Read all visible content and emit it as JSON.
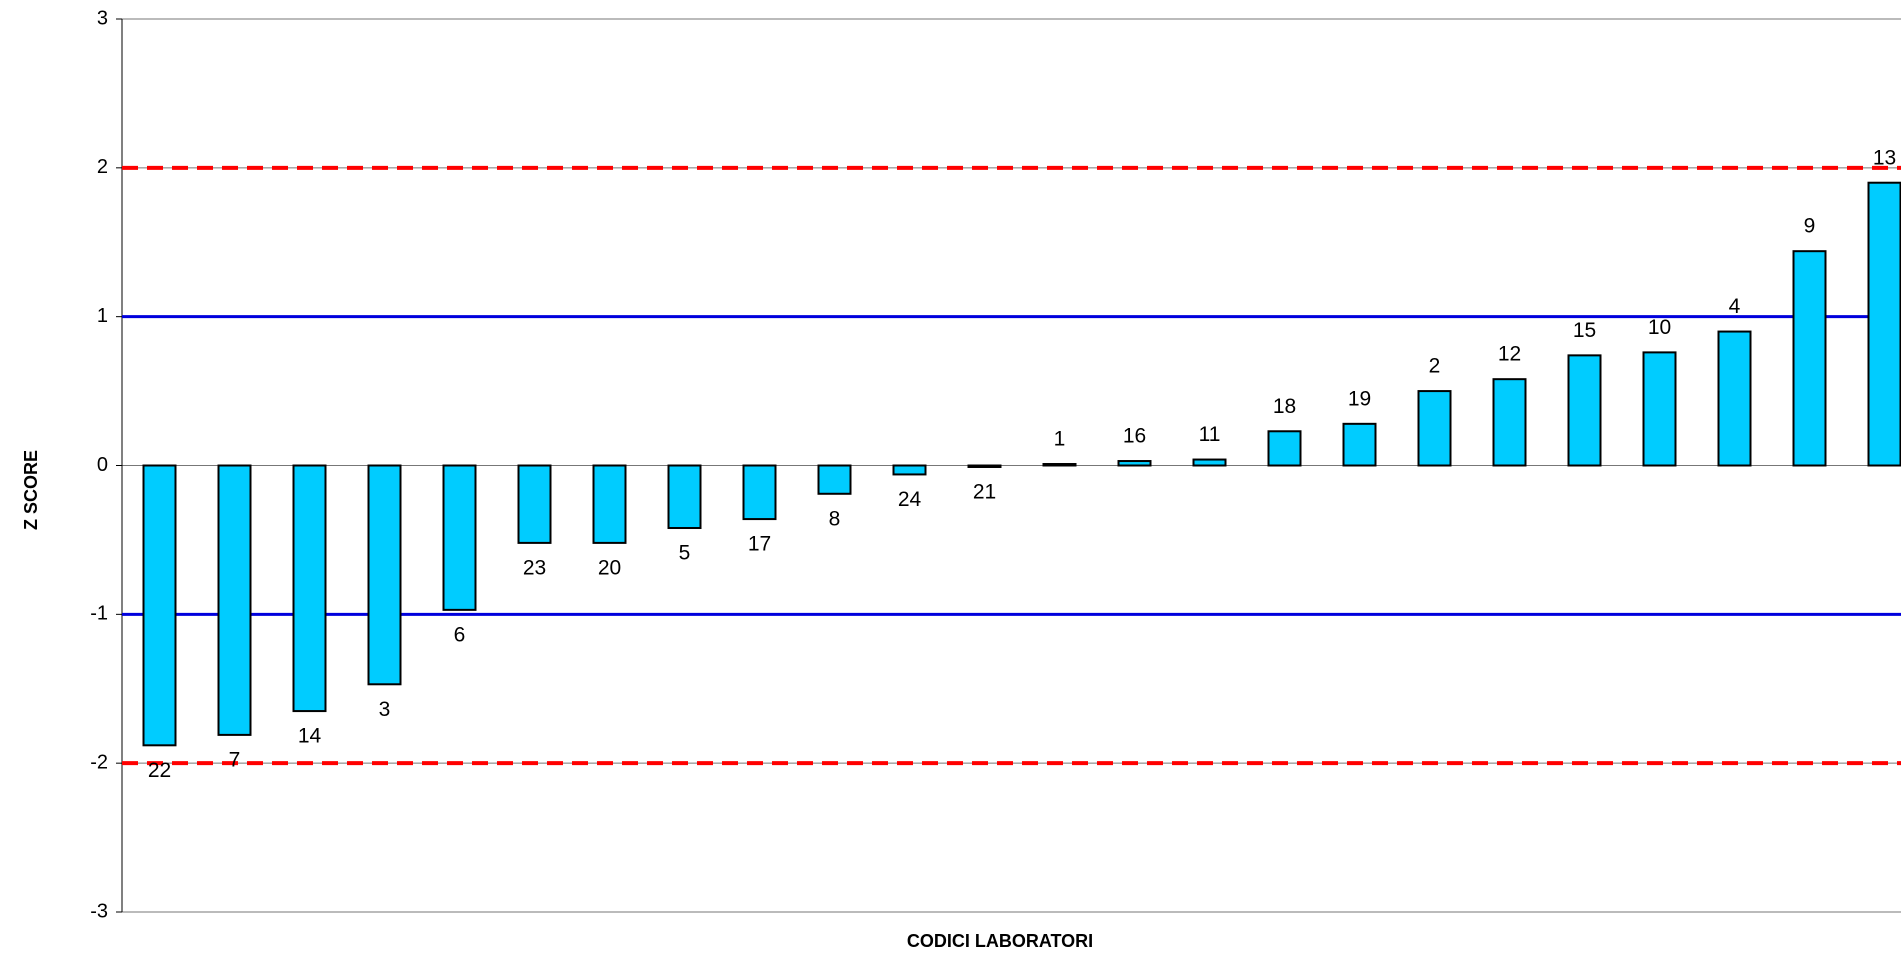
{
  "chart_data": {
    "type": "bar",
    "x_label": "CODICI LABORATORI",
    "y_label": "Z SCORE",
    "categories": [
      "22",
      "7",
      "14",
      "3",
      "6",
      "23",
      "20",
      "5",
      "17",
      "8",
      "24",
      "21",
      "1",
      "16",
      "11",
      "18",
      "19",
      "2",
      "12",
      "15",
      "10",
      "4",
      "9",
      "13"
    ],
    "values": [
      -1.88,
      -1.81,
      -1.65,
      -1.47,
      -0.97,
      -0.52,
      -0.52,
      -0.42,
      -0.36,
      -0.19,
      -0.06,
      -0.01,
      0.01,
      0.03,
      0.04,
      0.23,
      0.28,
      0.5,
      0.58,
      0.74,
      0.76,
      0.9,
      1.44,
      1.9
    ],
    "color": "#00ccff",
    "ylim": [
      -3,
      3
    ],
    "yticks": [
      -3,
      -2,
      -1,
      0,
      1,
      2,
      3
    ],
    "reference_lines": [
      {
        "value": 1,
        "color": "#0000dd",
        "dashed": false
      },
      {
        "value": -1,
        "color": "#0000dd",
        "dashed": false
      },
      {
        "value": 2,
        "color": "#ff0000",
        "dashed": true
      },
      {
        "value": -2,
        "color": "#ff0000",
        "dashed": true
      }
    ]
  }
}
